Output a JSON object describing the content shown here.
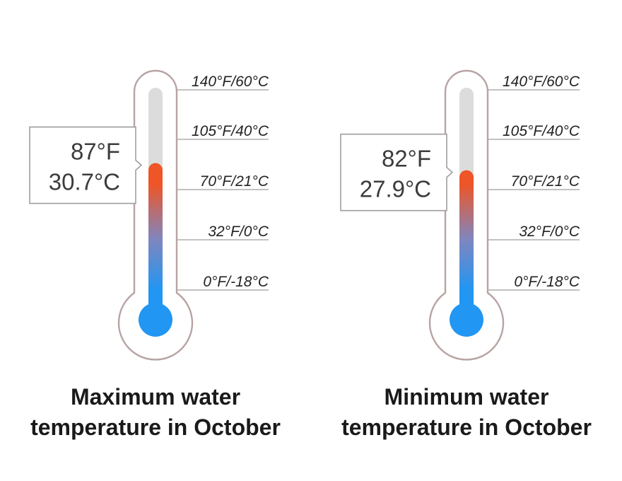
{
  "chart_data": [
    {
      "type": "thermometer",
      "caption_line1": "Maximum water",
      "caption_line2": "temperature in October",
      "value_f": 87,
      "value_label_f": "87°F",
      "value_label_c": "30.7°C",
      "ticks": [
        {
          "label": "140°F/60°C",
          "f": 140
        },
        {
          "label": "105°F/40°C",
          "f": 105
        },
        {
          "label": "70°F/21°C",
          "f": 70
        },
        {
          "label": "32°F/0°C",
          "f": 32
        },
        {
          "label": "0°F/-18°C",
          "f": 0
        }
      ]
    },
    {
      "type": "thermometer",
      "caption_line1": "Minimum water",
      "caption_line2": "temperature in October",
      "value_f": 82,
      "value_label_f": "82°F",
      "value_label_c": "27.9°C",
      "ticks": [
        {
          "label": "140°F/60°C",
          "f": 140
        },
        {
          "label": "105°F/40°C",
          "f": 105
        },
        {
          "label": "70°F/21°C",
          "f": 70
        },
        {
          "label": "32°F/0°C",
          "f": 32
        },
        {
          "label": "0°F/-18°C",
          "f": 0
        }
      ]
    }
  ],
  "colors": {
    "outline": "#b8a3a3",
    "tube_empty": "#dcdcdc",
    "fill_hot": "#ee5527",
    "fill_cold": "#2196f3",
    "tick_line": "#9e9e9e",
    "callout_border": "#9e9e9e"
  }
}
